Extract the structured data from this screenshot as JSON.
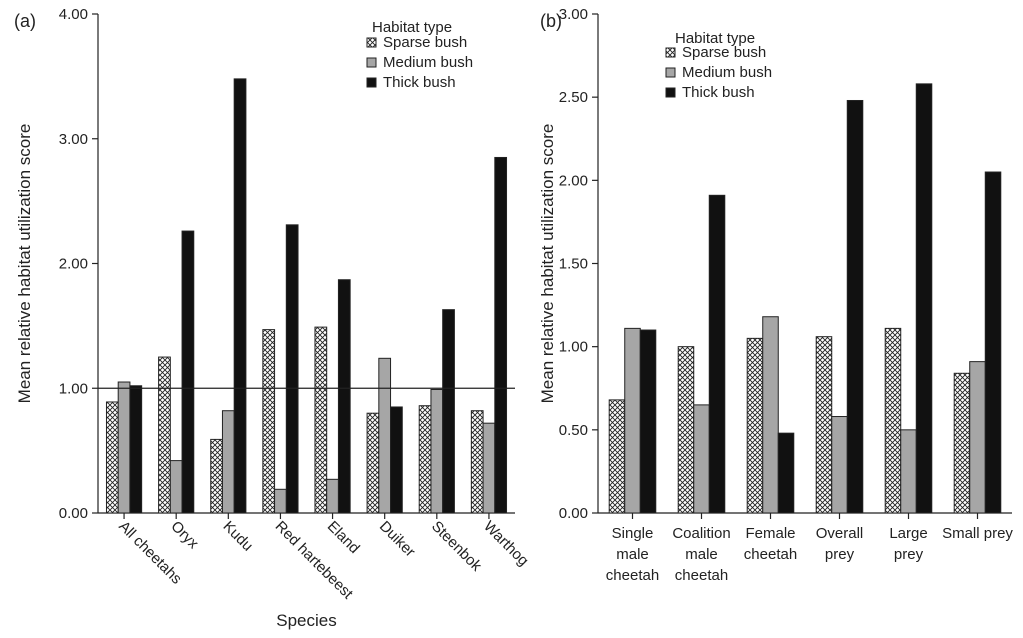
{
  "chart_data": [
    {
      "type": "bar",
      "panel_label": "(a)",
      "xlabel": "Species",
      "ylabel": "Mean relative habitat utilization score",
      "ylim": [
        0,
        4
      ],
      "y_ticks": [
        "0.00",
        "1.00",
        "2.00",
        "3.00",
        "4.00"
      ],
      "reference_line": 1.0,
      "categories": [
        "All cheetahs",
        "Oryx",
        "Kudu",
        "Red hartebeest",
        "Eland",
        "Duiker",
        "Steenbok",
        "Warthog"
      ],
      "legend_title": "Habitat type",
      "legend_position": "top-right",
      "series": [
        {
          "name": "Sparse bush",
          "color": "#e6e6e6",
          "pattern": "crosshatch",
          "values": [
            0.89,
            1.25,
            0.59,
            1.47,
            1.49,
            0.8,
            0.86,
            0.82
          ]
        },
        {
          "name": "Medium bush",
          "color": "#a6a6a6",
          "pattern": "solid",
          "values": [
            1.05,
            0.42,
            0.82,
            0.19,
            0.27,
            1.24,
            0.99,
            0.72
          ]
        },
        {
          "name": "Thick bush",
          "color": "#111111",
          "pattern": "solid",
          "values": [
            1.02,
            2.26,
            3.48,
            2.31,
            1.87,
            0.85,
            1.63,
            2.85
          ]
        }
      ],
      "x_tick_rotation": "rotated"
    },
    {
      "type": "bar",
      "panel_label": "(b)",
      "xlabel": "",
      "ylabel": "Mean relative habitat utilization score",
      "ylim": [
        0,
        3
      ],
      "y_ticks": [
        "0.00",
        "0.50",
        "1.00",
        "1.50",
        "2.00",
        "2.50",
        "3.00"
      ],
      "categories": [
        [
          "Single",
          "male",
          "cheetah"
        ],
        [
          "Coalition",
          "male",
          "cheetah"
        ],
        [
          "Female",
          "cheetah"
        ],
        [
          "Overall",
          "prey"
        ],
        [
          "Large",
          "prey"
        ],
        [
          "Small prey"
        ]
      ],
      "legend_title": "Habitat type",
      "legend_position": "top-left",
      "series": [
        {
          "name": "Sparse bush",
          "color": "#e6e6e6",
          "pattern": "crosshatch",
          "values": [
            0.68,
            1.0,
            1.05,
            1.06,
            1.11,
            0.84
          ]
        },
        {
          "name": "Medium bush",
          "color": "#a6a6a6",
          "pattern": "solid",
          "values": [
            1.11,
            0.65,
            1.18,
            0.58,
            0.5,
            0.91
          ]
        },
        {
          "name": "Thick bush",
          "color": "#111111",
          "pattern": "solid",
          "values": [
            1.1,
            1.91,
            0.48,
            2.48,
            2.58,
            2.05
          ]
        }
      ],
      "x_tick_rotation": "horizontal"
    }
  ]
}
